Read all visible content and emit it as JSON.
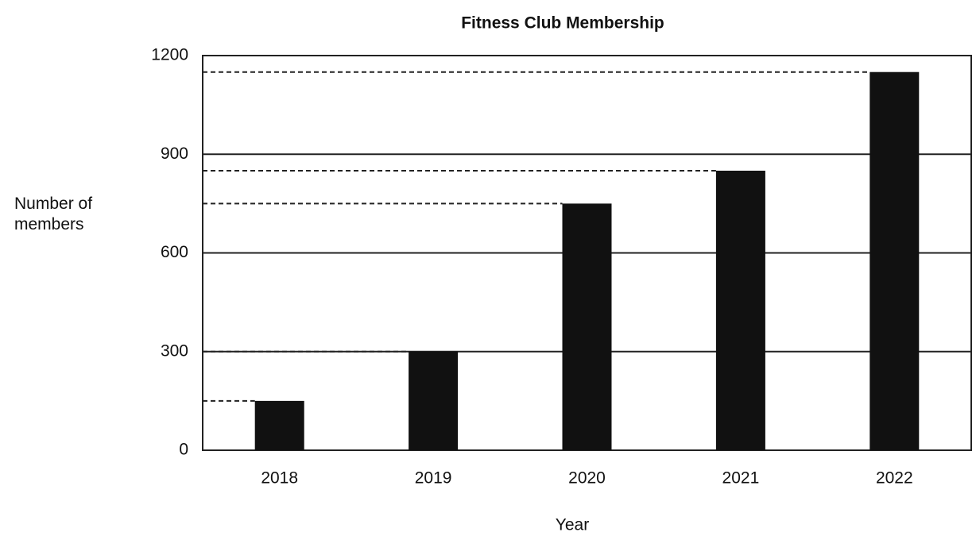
{
  "chart_data": {
    "type": "bar",
    "title": "Fitness Club Membership",
    "x_label": "Year",
    "y_label": "Number of members",
    "categories": [
      "2018",
      "2019",
      "2020",
      "2021",
      "2022"
    ],
    "values": [
      150,
      300,
      750,
      850,
      1150
    ],
    "color": "#111111",
    "ylim": [
      0,
      1200
    ],
    "yticks": [
      0,
      300,
      600,
      900,
      1200
    ],
    "grid": true,
    "reference_lines": true
  }
}
